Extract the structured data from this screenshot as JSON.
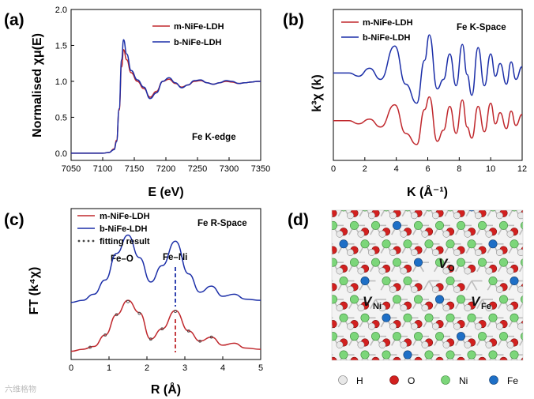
{
  "chart_data": [
    {
      "panel": "(a)",
      "type": "line",
      "title": "",
      "xlabel": "E (eV)",
      "ylabel": "Normalised χμ(E)",
      "xlim": [
        7050,
        7350
      ],
      "ylim": [
        -0.1,
        2.0
      ],
      "xticks": [
        "7050",
        "7100",
        "7150",
        "7200",
        "7250",
        "7300",
        "7350"
      ],
      "yticks": [
        "0.0",
        "0.5",
        "1.0",
        "1.5",
        "2.0"
      ],
      "annotation": "Fe K-edge",
      "series": [
        {
          "name": "m-NiFe-LDH",
          "color": "#c0282d",
          "x": [
            7050,
            7100,
            7110,
            7118,
            7122,
            7126,
            7130,
            7133,
            7138,
            7145,
            7155,
            7165,
            7175,
            7185,
            7195,
            7205,
            7215,
            7225,
            7235,
            7245,
            7255,
            7265,
            7275,
            7285,
            7295,
            7305,
            7315,
            7325,
            7335,
            7345,
            7350
          ],
          "y": [
            0.0,
            0.0,
            0.01,
            0.06,
            0.18,
            0.6,
            1.2,
            1.44,
            1.3,
            1.12,
            1.0,
            0.9,
            0.78,
            0.86,
            1.0,
            1.03,
            0.97,
            0.92,
            0.95,
            1.0,
            1.01,
            0.98,
            0.96,
            0.98,
            1.0,
            0.99,
            0.97,
            0.98,
            0.99,
            1.0,
            1.0
          ]
        },
        {
          "name": "b-NiFe-LDH",
          "color": "#1c2fa8",
          "x": [
            7050,
            7100,
            7110,
            7118,
            7122,
            7126,
            7130,
            7133,
            7138,
            7145,
            7155,
            7165,
            7175,
            7185,
            7195,
            7205,
            7215,
            7225,
            7235,
            7245,
            7255,
            7265,
            7275,
            7285,
            7295,
            7305,
            7315,
            7325,
            7335,
            7345,
            7350
          ],
          "y": [
            0.0,
            0.0,
            0.01,
            0.05,
            0.16,
            0.62,
            1.3,
            1.58,
            1.38,
            1.15,
            1.02,
            0.92,
            0.76,
            0.84,
            1.0,
            1.05,
            0.98,
            0.91,
            0.95,
            1.01,
            1.02,
            0.98,
            0.96,
            0.98,
            1.01,
            1.0,
            0.97,
            0.98,
            0.99,
            1.0,
            1.0
          ]
        }
      ]
    },
    {
      "panel": "(b)",
      "type": "line",
      "title": "",
      "xlabel": "K (Å⁻¹)",
      "ylabel": "k³χ (k)",
      "xlim": [
        0,
        12
      ],
      "ylim": [
        -2.5,
        7
      ],
      "xticks": [
        "0",
        "2",
        "4",
        "6",
        "8",
        "10",
        "12"
      ],
      "yticks": [],
      "annotation": "Fe K-Space",
      "series": [
        {
          "name": "m-NiFe-LDH",
          "color": "#c0282d",
          "x": [
            0,
            1,
            1.6,
            2.3,
            3,
            3.9,
            4.6,
            5.3,
            5.8,
            6.1,
            6.6,
            7.0,
            7.4,
            7.8,
            8.2,
            8.5,
            8.8,
            9.2,
            9.6,
            10,
            10.3,
            10.6,
            11,
            11.3,
            11.6,
            12
          ],
          "y": [
            0,
            0,
            -0.2,
            0.1,
            -0.4,
            1.0,
            -0.8,
            -1.5,
            0.7,
            1.5,
            -1.3,
            -0.6,
            0.9,
            -0.8,
            1.3,
            -0.4,
            -1.1,
            0.9,
            -0.7,
            1.1,
            -0.2,
            0.5,
            -0.5,
            0.6,
            -0.3,
            0.4
          ]
        },
        {
          "name": "b-NiFe-LDH",
          "color": "#1c2fa8",
          "x": [
            0,
            1,
            1.6,
            2.3,
            3,
            3.9,
            4.6,
            5.3,
            5.8,
            6.1,
            6.6,
            7.0,
            7.4,
            7.8,
            8.2,
            8.5,
            8.8,
            9.2,
            9.6,
            10,
            10.3,
            10.6,
            11,
            11.3,
            11.6,
            12
          ],
          "y": [
            3.0,
            3.0,
            2.8,
            3.3,
            2.6,
            4.7,
            2.3,
            1.1,
            3.8,
            5.4,
            2.0,
            2.6,
            4.2,
            2.2,
            4.8,
            2.9,
            1.6,
            4.6,
            2.2,
            4.2,
            2.8,
            3.6,
            2.3,
            3.7,
            2.6,
            3.4
          ]
        }
      ]
    },
    {
      "panel": "(c)",
      "type": "line",
      "title": "",
      "xlabel": "R (Å)",
      "ylabel": "FT (k⁴χ)",
      "xlim": [
        0,
        5
      ],
      "ylim": [
        -0.2,
        3.5
      ],
      "xticks": [
        "0",
        "1",
        "2",
        "3",
        "4",
        "5"
      ],
      "yticks": [],
      "annotation": "Fe R-Space",
      "peak_labels": [
        "Fe–O",
        "Fe–Ni"
      ],
      "peak_positions": [
        1.55,
        2.75
      ],
      "series": [
        {
          "name": "m-NiFe-LDH",
          "color": "#c0282d",
          "x": [
            0,
            0.3,
            0.6,
            0.9,
            1.2,
            1.5,
            1.8,
            2.1,
            2.4,
            2.75,
            3.1,
            3.4,
            3.7,
            4.0,
            4.3,
            4.6,
            5.0
          ],
          "y": [
            0,
            0.05,
            0.12,
            0.4,
            0.9,
            1.25,
            0.95,
            0.3,
            0.55,
            1.0,
            0.5,
            0.25,
            0.35,
            0.15,
            0.2,
            0.08,
            0.05
          ]
        },
        {
          "name": "b-NiFe-LDH",
          "color": "#1c2fa8",
          "x": [
            0,
            0.3,
            0.6,
            0.9,
            1.2,
            1.5,
            1.8,
            2.1,
            2.4,
            2.75,
            3.1,
            3.4,
            3.7,
            4.0,
            4.3,
            4.6,
            5.0
          ],
          "y": [
            1.2,
            1.25,
            1.4,
            1.75,
            2.4,
            2.85,
            2.3,
            1.7,
            2.1,
            2.7,
            1.9,
            1.45,
            1.6,
            1.35,
            1.4,
            1.28,
            1.25
          ]
        },
        {
          "name": "fitting result",
          "style": "dotted",
          "color": "#444444",
          "x": [
            0.5,
            0.9,
            1.2,
            1.5,
            1.8,
            2.1,
            2.4,
            2.75,
            3.1,
            3.4,
            3.7
          ],
          "y": [
            0.1,
            0.4,
            0.9,
            1.22,
            0.93,
            0.3,
            0.55,
            0.98,
            0.5,
            0.25,
            0.35
          ]
        }
      ]
    }
  ],
  "panel_labels": {
    "a": "(a)",
    "b": "(b)",
    "c": "(c)",
    "d": "(d)"
  },
  "structure": {
    "vacancy_labels": {
      "o": "O",
      "ni": "Ni",
      "fe": "Fe",
      "v": "V"
    },
    "legend": [
      {
        "label": "H",
        "color": "#e8e8e8"
      },
      {
        "label": "O",
        "color": "#d2201f"
      },
      {
        "label": "Ni",
        "color": "#7cd67a"
      },
      {
        "label": "Fe",
        "color": "#1e6fc6"
      }
    ]
  },
  "watermark": "六维格物"
}
